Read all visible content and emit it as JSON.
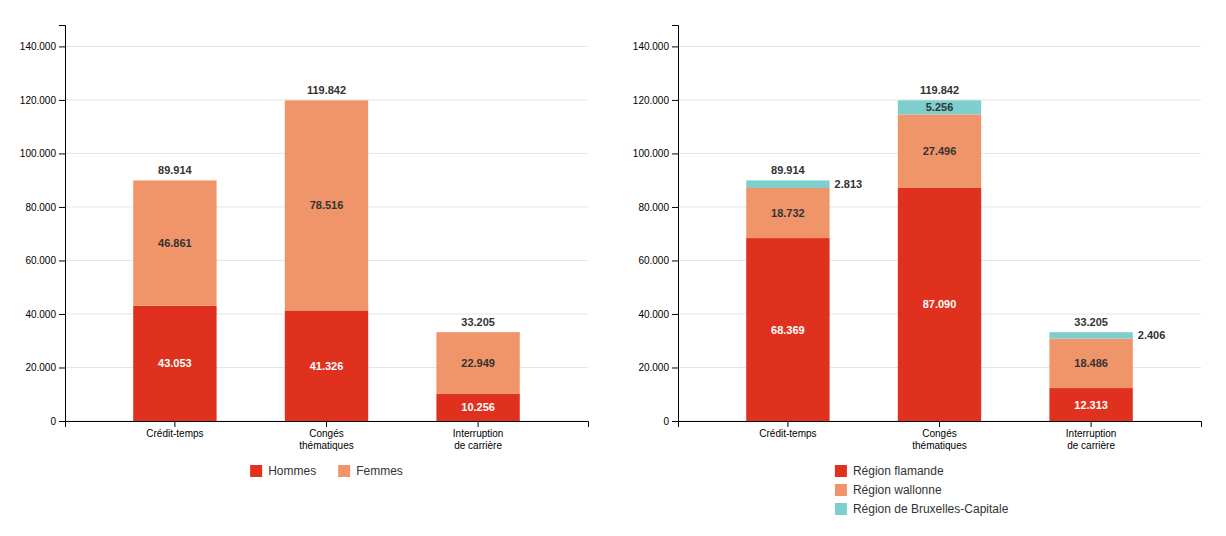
{
  "chart_data": [
    {
      "type": "bar",
      "stacked": true,
      "data_labels": true,
      "grid": true,
      "legend": "bottom",
      "categories": [
        "Crédit-temps",
        "Congés\nthématiques",
        "Interruption\nde carrière"
      ],
      "series": [
        {
          "name": "Hommes",
          "color": "#e0301e",
          "values": [
            43053,
            41326,
            10256
          ],
          "value_labels": [
            "43.053",
            "41.326",
            "10.256"
          ]
        },
        {
          "name": "Femmes",
          "color": "#f0956a",
          "values": [
            46861,
            78516,
            22949
          ],
          "value_labels": [
            "46.861",
            "78.516",
            "22.949"
          ]
        }
      ],
      "totals": [
        89914,
        119842,
        33205
      ],
      "total_labels": [
        "89.914",
        "119.842",
        "33.205"
      ],
      "ylim": [
        0,
        148000
      ],
      "yticks": [
        0,
        {
          "value": 20000,
          "label": "20.000"
        },
        {
          "value": 40000,
          "label": "40.000"
        },
        {
          "value": 60000,
          "label": "60.000"
        },
        {
          "value": 80000,
          "label": "80.000"
        },
        {
          "value": 100000,
          "label": "100.000"
        },
        {
          "value": 120000,
          "label": "120.000"
        },
        {
          "value": 140000,
          "label": "140.000"
        }
      ]
    },
    {
      "type": "bar",
      "stacked": true,
      "data_labels": true,
      "grid": true,
      "legend": "bottom",
      "categories": [
        "Crédit-temps",
        "Congés\nthématiques",
        "Interruption\nde carrière"
      ],
      "series": [
        {
          "name": "Région flamande",
          "color": "#e0301e",
          "values": [
            68369,
            87090,
            12313
          ],
          "value_labels": [
            "68.369",
            "87.090",
            "12.313"
          ]
        },
        {
          "name": "Région wallonne",
          "color": "#f0956a",
          "values": [
            18732,
            27496,
            18486
          ],
          "value_labels": [
            "18.732",
            "27.496",
            "18.486"
          ]
        },
        {
          "name": "Région de Bruxelles-Capitale",
          "color": "#7ecece",
          "values": [
            2813,
            5256,
            2406
          ],
          "value_labels": [
            "2.813",
            "5.256",
            "2.406"
          ]
        }
      ],
      "totals": [
        89914,
        119842,
        33205
      ],
      "total_labels": [
        "89.914",
        "119.842",
        "33.205"
      ],
      "ylim": [
        0,
        148000
      ],
      "yticks": [
        0,
        {
          "value": 20000,
          "label": "20.000"
        },
        {
          "value": 40000,
          "label": "40.000"
        },
        {
          "value": 60000,
          "label": "60.000"
        },
        {
          "value": 80000,
          "label": "80.000"
        },
        {
          "value": 100000,
          "label": "100.000"
        },
        {
          "value": 120000,
          "label": "120.000"
        },
        {
          "value": 140000,
          "label": "140.000"
        }
      ]
    }
  ]
}
